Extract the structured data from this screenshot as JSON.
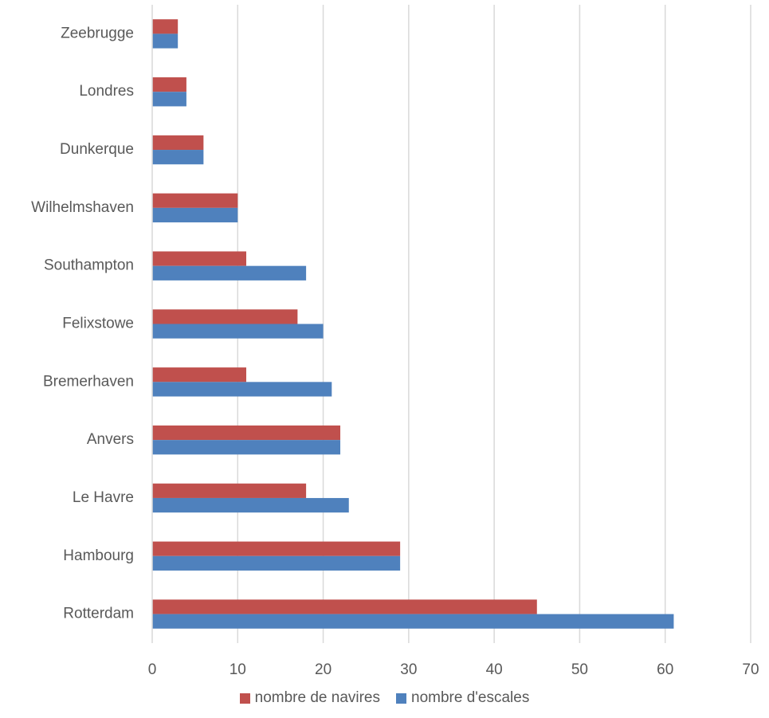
{
  "chart_data": {
    "type": "bar",
    "orientation": "horizontal",
    "categories": [
      "Rotterdam",
      "Hambourg",
      "Le Havre",
      "Anvers",
      "Bremerhaven",
      "Felixstowe",
      "Southampton",
      "Wilhelmshaven",
      "Dunkerque",
      "Londres",
      "Zeebrugge"
    ],
    "series": [
      {
        "name": "nombre de navires",
        "color": "#c0504d",
        "values": [
          45,
          29,
          18,
          22,
          11,
          17,
          11,
          10,
          6,
          4,
          3
        ]
      },
      {
        "name": "nombre d'escales",
        "color": "#4f81bd",
        "values": [
          61,
          29,
          23,
          22,
          21,
          20,
          18,
          10,
          6,
          4,
          3
        ]
      }
    ],
    "xlim": [
      0,
      70
    ],
    "xticks": [
      0,
      10,
      20,
      30,
      40,
      50,
      60,
      70
    ],
    "grid": true,
    "legend_position": "bottom"
  }
}
